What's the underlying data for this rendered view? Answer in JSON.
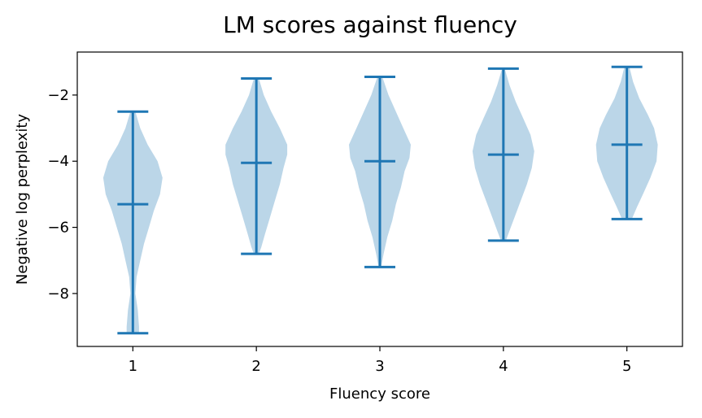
{
  "chart_data": {
    "type": "violin",
    "title": "LM scores against fluency",
    "xlabel": "Fluency score",
    "ylabel": "Negative log perplexity",
    "categories": [
      "1",
      "2",
      "3",
      "4",
      "5"
    ],
    "x": [
      1,
      2,
      3,
      4,
      5
    ],
    "xlim": [
      0.55,
      5.45
    ],
    "ylim": [
      -9.6,
      -0.7
    ],
    "y_ticks": [
      -2,
      -4,
      -6,
      -8
    ],
    "y_tick_labels": [
      "−2",
      "−4",
      "−6",
      "−8"
    ],
    "grid": false,
    "colors": {
      "body": "#1f77b4",
      "body_alpha": 0.3,
      "lines": "#1f77b4",
      "axis": "#000000"
    },
    "series": [
      {
        "x": 1,
        "min": -9.2,
        "max": -2.5,
        "mean": -5.3,
        "density": [
          [
            -2.5,
            0.02
          ],
          [
            -3.0,
            0.06
          ],
          [
            -3.5,
            0.12
          ],
          [
            -4.0,
            0.2
          ],
          [
            -4.5,
            0.24
          ],
          [
            -5.0,
            0.22
          ],
          [
            -5.5,
            0.17
          ],
          [
            -6.0,
            0.13
          ],
          [
            -6.5,
            0.09
          ],
          [
            -7.0,
            0.06
          ],
          [
            -7.5,
            0.03
          ],
          [
            -8.0,
            0.02
          ],
          [
            -8.5,
            0.04
          ],
          [
            -9.0,
            0.05
          ],
          [
            -9.2,
            0.05
          ]
        ]
      },
      {
        "x": 2,
        "min": -6.8,
        "max": -1.5,
        "mean": -4.05,
        "density": [
          [
            -1.5,
            0.02
          ],
          [
            -2.0,
            0.06
          ],
          [
            -2.5,
            0.12
          ],
          [
            -3.0,
            0.19
          ],
          [
            -3.5,
            0.25
          ],
          [
            -3.8,
            0.25
          ],
          [
            -4.2,
            0.22
          ],
          [
            -4.7,
            0.19
          ],
          [
            -5.2,
            0.15
          ],
          [
            -5.7,
            0.11
          ],
          [
            -6.2,
            0.07
          ],
          [
            -6.6,
            0.04
          ],
          [
            -6.8,
            0.02
          ]
        ]
      },
      {
        "x": 3,
        "min": -7.2,
        "max": -1.45,
        "mean": -4.0,
        "density": [
          [
            -1.45,
            0.02
          ],
          [
            -2.0,
            0.07
          ],
          [
            -2.5,
            0.13
          ],
          [
            -3.0,
            0.19
          ],
          [
            -3.5,
            0.25
          ],
          [
            -3.9,
            0.24
          ],
          [
            -4.3,
            0.2
          ],
          [
            -4.8,
            0.17
          ],
          [
            -5.3,
            0.13
          ],
          [
            -5.8,
            0.1
          ],
          [
            -6.3,
            0.06
          ],
          [
            -6.8,
            0.03
          ],
          [
            -7.2,
            0.01
          ]
        ]
      },
      {
        "x": 4,
        "min": -6.4,
        "max": -1.2,
        "mean": -3.8,
        "density": [
          [
            -1.2,
            0.01
          ],
          [
            -1.7,
            0.05
          ],
          [
            -2.2,
            0.1
          ],
          [
            -2.7,
            0.16
          ],
          [
            -3.2,
            0.22
          ],
          [
            -3.7,
            0.25
          ],
          [
            -4.2,
            0.23
          ],
          [
            -4.7,
            0.19
          ],
          [
            -5.2,
            0.14
          ],
          [
            -5.7,
            0.09
          ],
          [
            -6.1,
            0.05
          ],
          [
            -6.4,
            0.02
          ]
        ]
      },
      {
        "x": 5,
        "min": -5.75,
        "max": -1.15,
        "mean": -3.5,
        "density": [
          [
            -1.15,
            0.02
          ],
          [
            -1.6,
            0.05
          ],
          [
            -2.1,
            0.1
          ],
          [
            -2.6,
            0.17
          ],
          [
            -3.0,
            0.22
          ],
          [
            -3.5,
            0.25
          ],
          [
            -4.0,
            0.24
          ],
          [
            -4.5,
            0.19
          ],
          [
            -5.0,
            0.13
          ],
          [
            -5.4,
            0.08
          ],
          [
            -5.75,
            0.04
          ]
        ]
      }
    ]
  }
}
